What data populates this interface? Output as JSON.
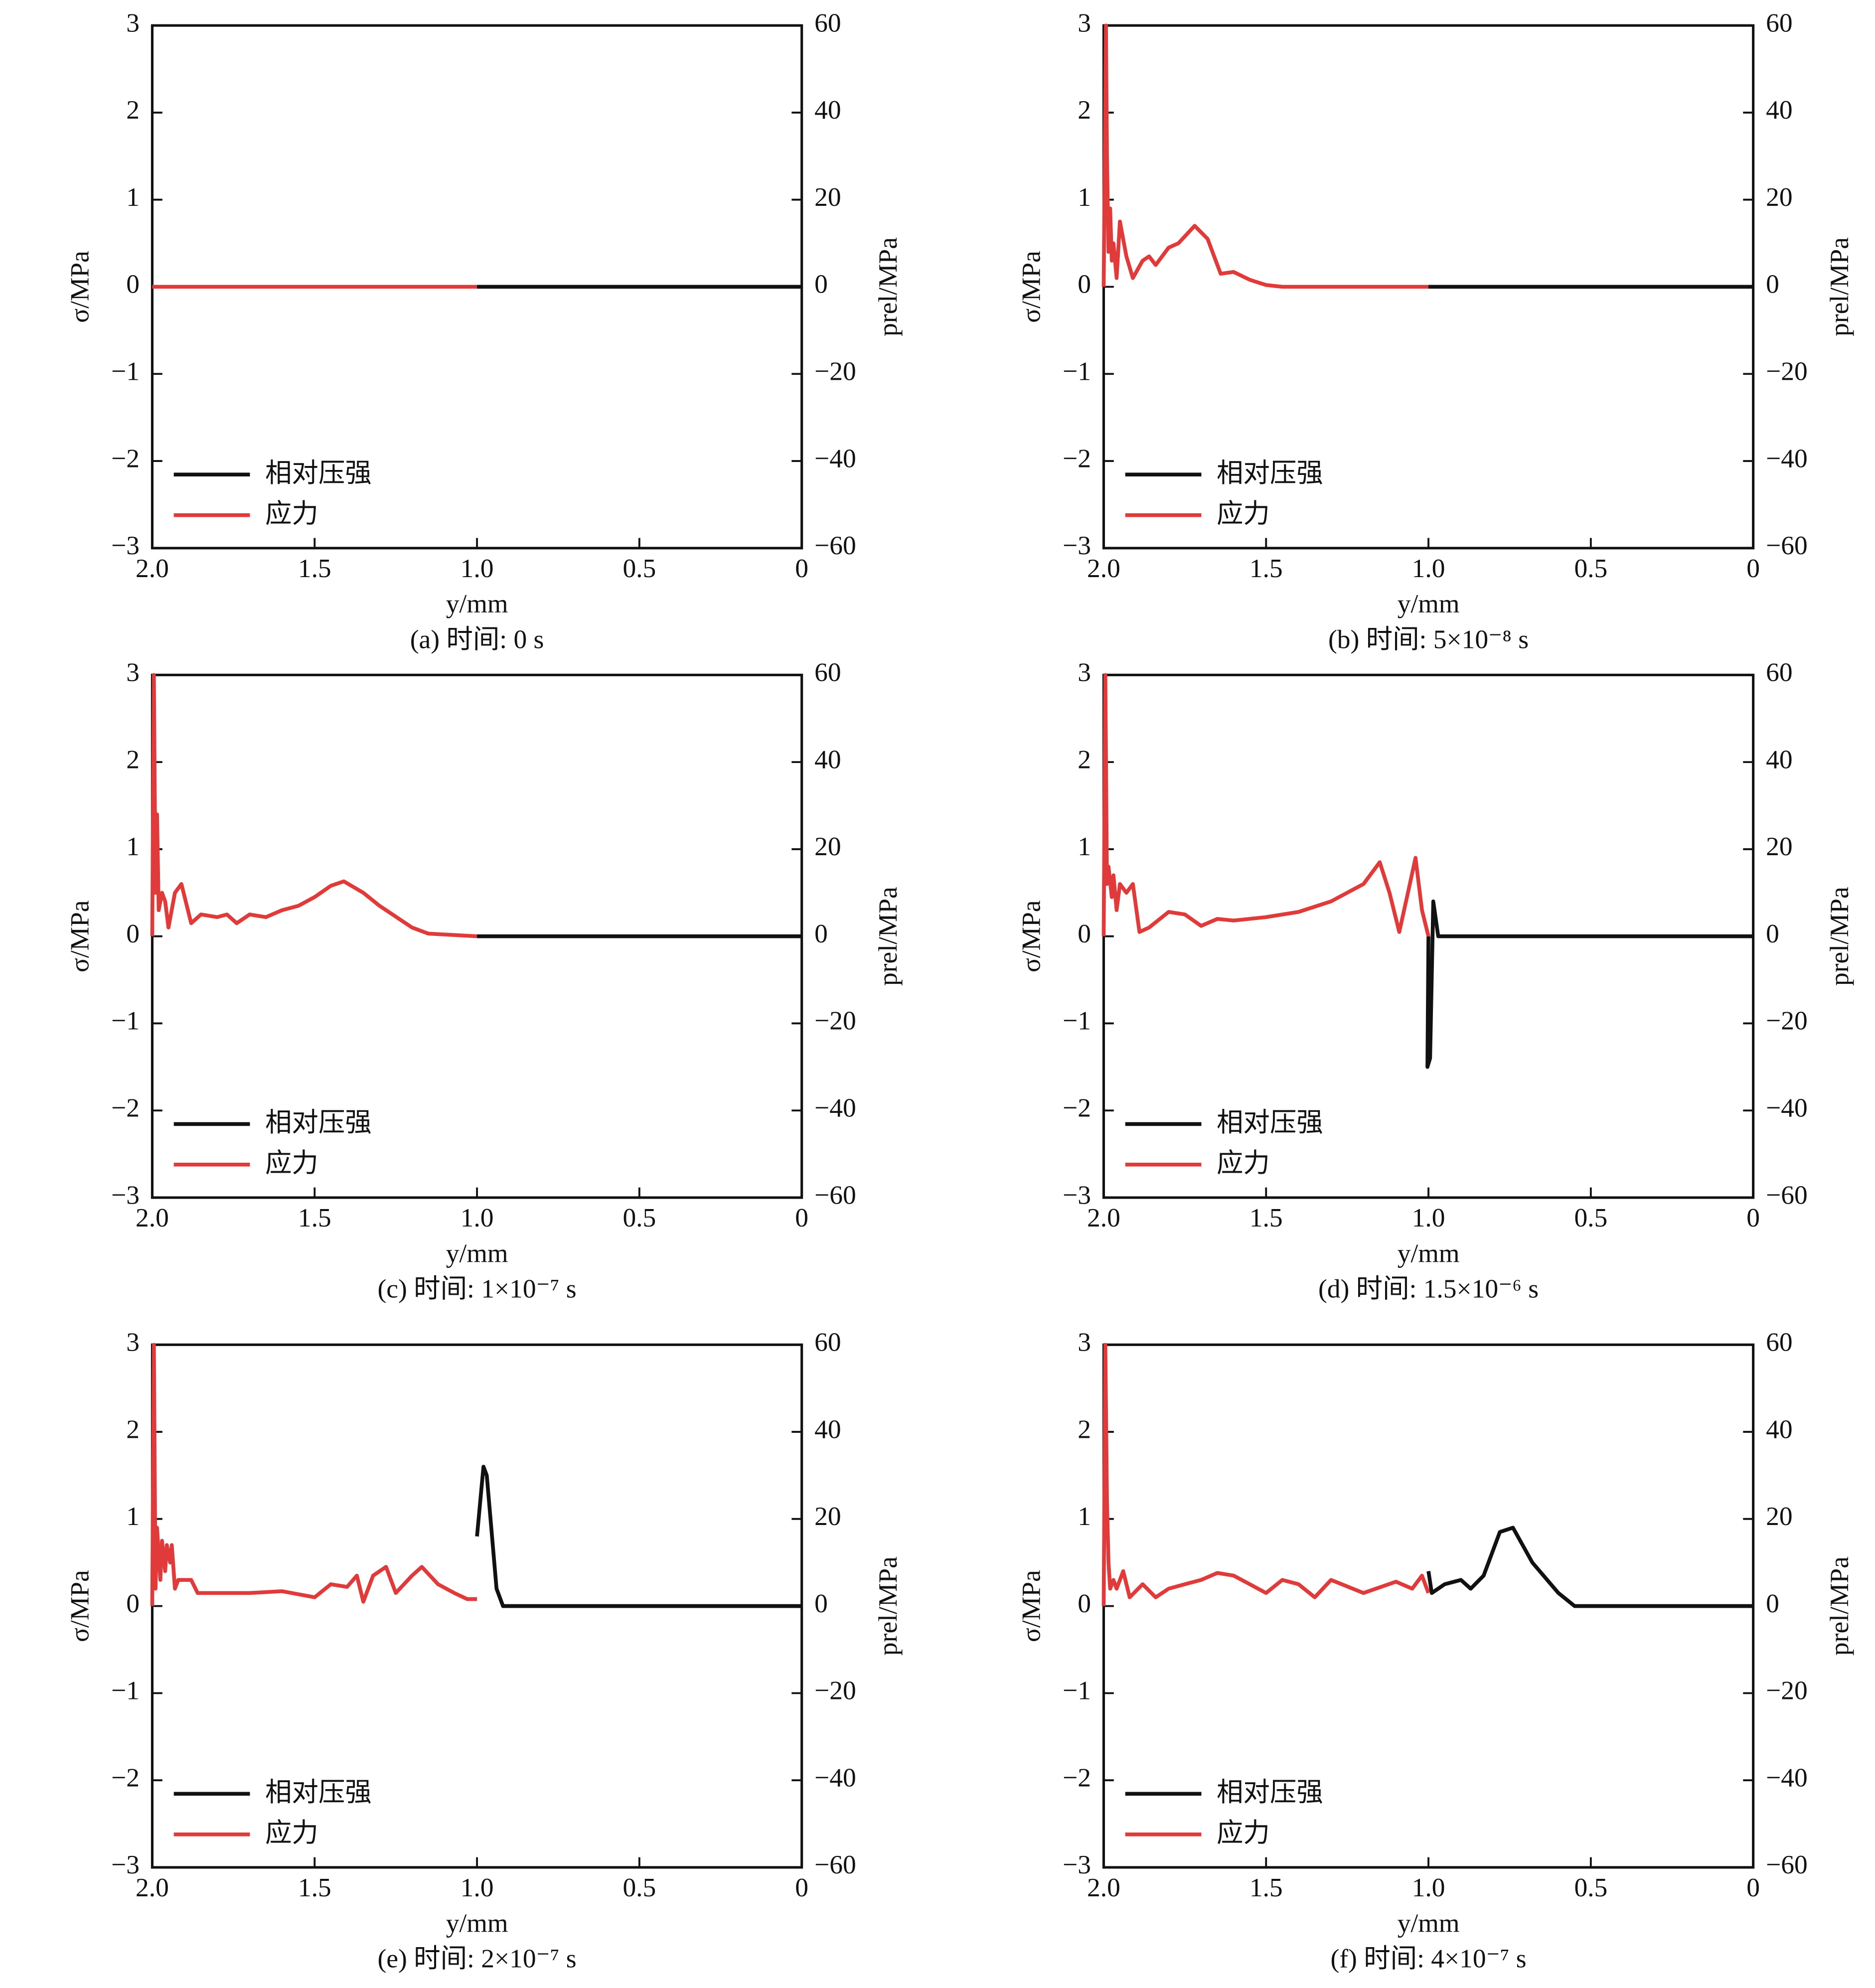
{
  "chart_data": [
    {
      "type": "line",
      "caption": "(a) 时间: 0 s",
      "xlabel": "y/mm",
      "ylabel": "σ/MPa",
      "y2label": "prel/MPa",
      "legend": "lower left",
      "xlim": [
        2,
        0
      ],
      "xticks": [
        {
          "value": 2,
          "label": "2.0"
        },
        1.5,
        {
          "value": 1,
          "label": "1.0"
        },
        0.5,
        0
      ],
      "ylim": [
        -3,
        3
      ],
      "yticks": [
        {
          "value": -3,
          "label": "−3"
        },
        {
          "value": -2,
          "label": "−2"
        },
        {
          "value": -1,
          "label": "−1"
        },
        0,
        1,
        2,
        3
      ],
      "y2lim": [
        -60,
        60
      ],
      "y2ticks": [
        {
          "value": -60,
          "label": "−60"
        },
        {
          "value": -40,
          "label": "−40"
        },
        {
          "value": -20,
          "label": "−20"
        },
        0,
        20,
        40,
        60
      ],
      "series": [
        {
          "name": "相对压强",
          "color": "#111111",
          "axis": "y2",
          "x": [
            1,
            0
          ],
          "values": [
            0,
            0
          ]
        },
        {
          "name": "应力",
          "color": "#e03a3a",
          "x": [
            2,
            1
          ],
          "values": [
            0,
            0
          ]
        }
      ]
    },
    {
      "type": "line",
      "caption": "(b) 时间: 5×10⁻⁸ s",
      "xlabel": "y/mm",
      "ylabel": "σ/MPa",
      "y2label": "prel/MPa",
      "legend": "lower left",
      "xlim": [
        2,
        0
      ],
      "xticks": [
        {
          "value": 2,
          "label": "2.0"
        },
        1.5,
        {
          "value": 1,
          "label": "1.0"
        },
        0.5,
        0
      ],
      "ylim": [
        -3,
        3
      ],
      "yticks": [
        {
          "value": -3,
          "label": "−3"
        },
        {
          "value": -2,
          "label": "−2"
        },
        {
          "value": -1,
          "label": "−1"
        },
        0,
        1,
        2,
        3
      ],
      "y2lim": [
        -60,
        60
      ],
      "y2ticks": [
        {
          "value": -60,
          "label": "−60"
        },
        {
          "value": -40,
          "label": "−40"
        },
        {
          "value": -20,
          "label": "−20"
        },
        0,
        20,
        40,
        60
      ],
      "series": [
        {
          "name": "相对压强",
          "color": "#111111",
          "axis": "y2",
          "x": [
            1,
            0
          ],
          "values": [
            0,
            0
          ]
        },
        {
          "name": "应力",
          "color": "#e03a3a",
          "x": [
            2,
            1.993,
            1.99,
            1.985,
            1.98,
            1.975,
            1.97,
            1.96,
            1.95,
            1.93,
            1.91,
            1.88,
            1.86,
            1.84,
            1.8,
            1.77,
            1.72,
            1.68,
            1.64,
            1.6,
            1.55,
            1.5,
            1.45,
            1.3,
            1
          ],
          "values": [
            0,
            3,
            1.5,
            0.4,
            0.9,
            0.3,
            0.5,
            0.1,
            0.75,
            0.35,
            0.1,
            0.3,
            0.35,
            0.25,
            0.45,
            0.5,
            0.7,
            0.55,
            0.15,
            0.17,
            0.08,
            0.02,
            0,
            0,
            0
          ]
        }
      ]
    },
    {
      "type": "line",
      "caption": "(c) 时间: 1×10⁻⁷ s",
      "xlabel": "y/mm",
      "ylabel": "σ/MPa",
      "y2label": "prel/MPa",
      "legend": "lower left",
      "xlim": [
        2,
        0
      ],
      "xticks": [
        {
          "value": 2,
          "label": "2.0"
        },
        1.5,
        {
          "value": 1,
          "label": "1.0"
        },
        0.5,
        0
      ],
      "ylim": [
        -3,
        3
      ],
      "yticks": [
        {
          "value": -3,
          "label": "−3"
        },
        {
          "value": -2,
          "label": "−2"
        },
        {
          "value": -1,
          "label": "−1"
        },
        0,
        1,
        2,
        3
      ],
      "y2lim": [
        -60,
        60
      ],
      "y2ticks": [
        {
          "value": -60,
          "label": "−60"
        },
        {
          "value": -40,
          "label": "−40"
        },
        {
          "value": -20,
          "label": "−20"
        },
        0,
        20,
        40,
        60
      ],
      "series": [
        {
          "name": "相对压强",
          "color": "#111111",
          "axis": "y2",
          "x": [
            1,
            0
          ],
          "values": [
            0,
            0
          ]
        },
        {
          "name": "应力",
          "color": "#e03a3a",
          "x": [
            2,
            1.995,
            1.99,
            1.985,
            1.98,
            1.97,
            1.96,
            1.95,
            1.93,
            1.91,
            1.88,
            1.85,
            1.8,
            1.77,
            1.74,
            1.7,
            1.65,
            1.6,
            1.55,
            1.5,
            1.45,
            1.41,
            1.35,
            1.3,
            1.2,
            1.15,
            1
          ],
          "values": [
            0,
            3,
            0.5,
            1.4,
            0.3,
            0.5,
            0.4,
            0.1,
            0.5,
            0.6,
            0.15,
            0.25,
            0.22,
            0.25,
            0.15,
            0.25,
            0.22,
            0.3,
            0.35,
            0.45,
            0.58,
            0.63,
            0.5,
            0.35,
            0.1,
            0.03,
            0
          ]
        }
      ]
    },
    {
      "type": "line",
      "caption": "(d) 时间: 1.5×10⁻⁶ s",
      "xlabel": "y/mm",
      "ylabel": "σ/MPa",
      "y2label": "prel/MPa",
      "legend": "lower left",
      "xlim": [
        2,
        0
      ],
      "xticks": [
        {
          "value": 2,
          "label": "2.0"
        },
        1.5,
        {
          "value": 1,
          "label": "1.0"
        },
        0.5,
        0
      ],
      "ylim": [
        -3,
        3
      ],
      "yticks": [
        {
          "value": -3,
          "label": "−3"
        },
        {
          "value": -2,
          "label": "−2"
        },
        {
          "value": -1,
          "label": "−1"
        },
        0,
        1,
        2,
        3
      ],
      "y2lim": [
        -60,
        60
      ],
      "y2ticks": [
        {
          "value": -60,
          "label": "−60"
        },
        {
          "value": -40,
          "label": "−40"
        },
        {
          "value": -20,
          "label": "−20"
        },
        0,
        20,
        40,
        60
      ],
      "series": [
        {
          "name": "相对压强",
          "color": "#111111",
          "axis": "y2",
          "x": [
            1,
            1.003,
            0.995,
            0.985,
            0.97,
            0
          ],
          "values": [
            0,
            -30,
            -28,
            8,
            0,
            0
          ]
        },
        {
          "name": "应力",
          "color": "#e03a3a",
          "x": [
            2,
            1.995,
            1.99,
            1.985,
            1.975,
            1.97,
            1.96,
            1.95,
            1.93,
            1.91,
            1.89,
            1.86,
            1.8,
            1.75,
            1.7,
            1.65,
            1.6,
            1.5,
            1.4,
            1.3,
            1.2,
            1.15,
            1.12,
            1.09,
            1.06,
            1.04,
            1.02,
            1
          ],
          "values": [
            0,
            3,
            0.6,
            0.8,
            0.45,
            0.7,
            0.3,
            0.6,
            0.5,
            0.6,
            0.05,
            0.1,
            0.28,
            0.25,
            0.12,
            0.2,
            0.18,
            0.22,
            0.28,
            0.4,
            0.6,
            0.85,
            0.5,
            0.05,
            0.55,
            0.9,
            0.3,
            0
          ]
        }
      ]
    },
    {
      "type": "line",
      "caption": "(e) 时间: 2×10⁻⁷ s",
      "xlabel": "y/mm",
      "ylabel": "σ/MPa",
      "y2label": "prel/MPa",
      "legend": "lower left",
      "xlim": [
        2,
        0
      ],
      "xticks": [
        {
          "value": 2,
          "label": "2.0"
        },
        1.5,
        {
          "value": 1,
          "label": "1.0"
        },
        0.5,
        0
      ],
      "ylim": [
        -3,
        3
      ],
      "yticks": [
        {
          "value": -3,
          "label": "−3"
        },
        {
          "value": -2,
          "label": "−2"
        },
        {
          "value": -1,
          "label": "−1"
        },
        0,
        1,
        2,
        3
      ],
      "y2lim": [
        -60,
        60
      ],
      "y2ticks": [
        {
          "value": -60,
          "label": "−60"
        },
        {
          "value": -40,
          "label": "−40"
        },
        {
          "value": -20,
          "label": "−20"
        },
        0,
        20,
        40,
        60
      ],
      "series": [
        {
          "name": "相对压强",
          "color": "#111111",
          "axis": "y2",
          "x": [
            1,
            0.98,
            0.97,
            0.94,
            0.92,
            0
          ],
          "values": [
            16,
            32,
            30,
            4,
            0,
            0
          ]
        },
        {
          "name": "应力",
          "color": "#e03a3a",
          "x": [
            2,
            1.995,
            1.99,
            1.985,
            1.975,
            1.97,
            1.96,
            1.955,
            1.945,
            1.94,
            1.93,
            1.92,
            1.88,
            1.86,
            1.8,
            1.7,
            1.6,
            1.5,
            1.45,
            1.4,
            1.37,
            1.35,
            1.32,
            1.28,
            1.25,
            1.2,
            1.17,
            1.12,
            1.07,
            1.03,
            1
          ],
          "values": [
            0,
            3,
            0.2,
            0.9,
            0.3,
            0.75,
            0.4,
            0.7,
            0.5,
            0.7,
            0.2,
            0.3,
            0.3,
            0.15,
            0.15,
            0.15,
            0.17,
            0.1,
            0.25,
            0.22,
            0.35,
            0.05,
            0.35,
            0.45,
            0.15,
            0.35,
            0.45,
            0.25,
            0.15,
            0.08,
            0.08
          ]
        }
      ]
    },
    {
      "type": "line",
      "caption": "(f) 时间: 4×10⁻⁷ s",
      "xlabel": "y/mm",
      "ylabel": "σ/MPa",
      "y2label": "prel/MPa",
      "legend": "lower left",
      "xlim": [
        2,
        0
      ],
      "xticks": [
        {
          "value": 2,
          "label": "2.0"
        },
        1.5,
        {
          "value": 1,
          "label": "1.0"
        },
        0.5,
        0
      ],
      "ylim": [
        -3,
        3
      ],
      "yticks": [
        {
          "value": -3,
          "label": "−3"
        },
        {
          "value": -2,
          "label": "−2"
        },
        {
          "value": -1,
          "label": "−1"
        },
        0,
        1,
        2,
        3
      ],
      "y2lim": [
        -60,
        60
      ],
      "y2ticks": [
        {
          "value": -60,
          "label": "−60"
        },
        {
          "value": -40,
          "label": "−40"
        },
        {
          "value": -20,
          "label": "−20"
        },
        0,
        20,
        40,
        60
      ],
      "series": [
        {
          "name": "相对压强",
          "color": "#111111",
          "axis": "y2",
          "x": [
            1,
            0.99,
            0.95,
            0.9,
            0.87,
            0.83,
            0.78,
            0.74,
            0.68,
            0.6,
            0.55,
            0
          ],
          "values": [
            8,
            3,
            5,
            6,
            4,
            7,
            17,
            18,
            10,
            3,
            0,
            0
          ]
        },
        {
          "name": "应力",
          "color": "#e03a3a",
          "x": [
            2,
            1.995,
            1.99,
            1.985,
            1.98,
            1.97,
            1.96,
            1.94,
            1.92,
            1.88,
            1.84,
            1.8,
            1.75,
            1.7,
            1.65,
            1.6,
            1.55,
            1.5,
            1.45,
            1.4,
            1.35,
            1.3,
            1.2,
            1.1,
            1.05,
            1.02,
            1
          ],
          "values": [
            0,
            3,
            1.2,
            0.5,
            0.2,
            0.3,
            0.2,
            0.4,
            0.1,
            0.25,
            0.1,
            0.2,
            0.25,
            0.3,
            0.38,
            0.35,
            0.25,
            0.15,
            0.3,
            0.25,
            0.1,
            0.3,
            0.15,
            0.28,
            0.2,
            0.35,
            0.15
          ]
        }
      ]
    }
  ]
}
